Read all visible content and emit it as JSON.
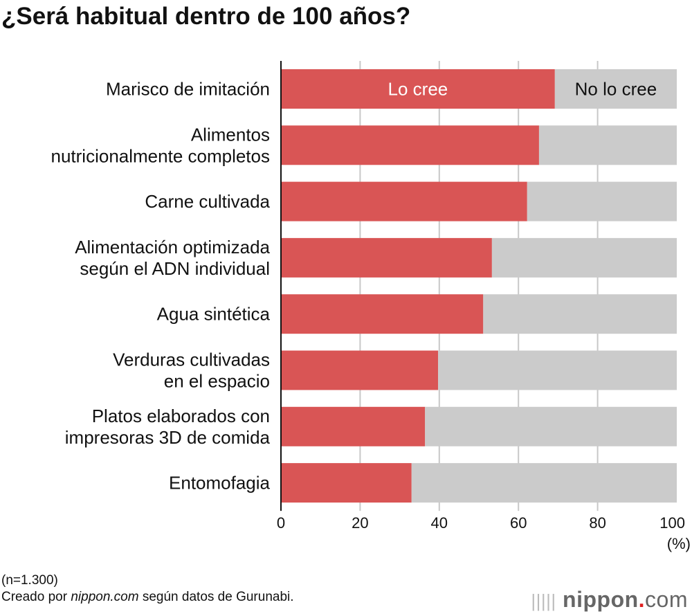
{
  "chart_data": {
    "type": "bar",
    "orientation": "horizontal",
    "stacked": true,
    "title": "¿Será habitual dentro de 100 años?",
    "categories": [
      [
        "Marisco de imitación"
      ],
      [
        "Alimentos",
        "nutricionalmente completos"
      ],
      [
        "Carne cultivada"
      ],
      [
        "Alimentación optimizada",
        "según el ADN individual"
      ],
      [
        "Agua sintética"
      ],
      [
        "Verduras cultivadas",
        "en el espacio"
      ],
      [
        "Platos elaborados con",
        "impresoras 3D de comida"
      ],
      [
        "Entomofagia"
      ]
    ],
    "series": [
      {
        "name": "Lo cree",
        "color": "#d95555",
        "values": [
          69.2,
          65.2,
          62.2,
          53.3,
          51.1,
          39.7,
          36.4,
          33.0
        ]
      },
      {
        "name": "No lo cree",
        "color": "#cbcbcb",
        "values": [
          30.8,
          34.8,
          37.8,
          46.7,
          48.9,
          60.3,
          63.6,
          67.0
        ]
      }
    ],
    "xlim": [
      0,
      100
    ],
    "xticks": [
      0,
      20,
      40,
      60,
      80,
      100
    ],
    "xunit": "(%)",
    "grid": true,
    "legend": "inside first bar"
  },
  "notes": {
    "sample": "(n=1.300)",
    "source_prefix": "Creado por ",
    "source_site": "nippon.com",
    "source_suffix": " según datos de Gurunabi."
  },
  "logo": {
    "name": "nippon",
    "dot": ".",
    "com": "com"
  }
}
